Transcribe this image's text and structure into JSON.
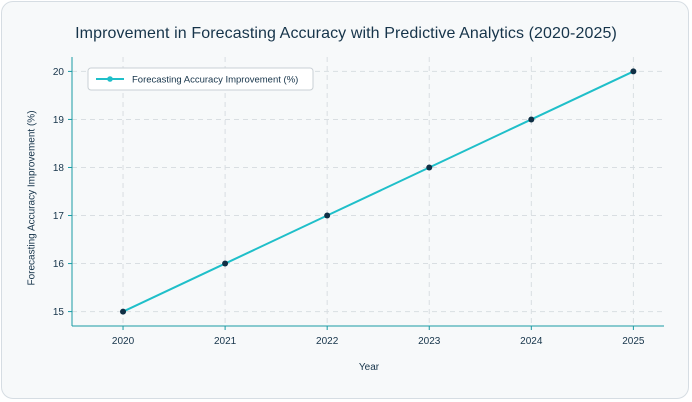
{
  "chart_data": {
    "type": "line",
    "title": "Improvement in Forecasting Accuracy with Predictive Analytics (2020-2025)",
    "xlabel": "Year",
    "ylabel": "Forecasting Accuracy Improvement (%)",
    "x": [
      2020,
      2021,
      2022,
      2023,
      2024,
      2025
    ],
    "xlim": [
      2019.5,
      2025.3
    ],
    "ylim": [
      14.7,
      20.3
    ],
    "yticks": [
      15,
      16,
      17,
      18,
      19,
      20
    ],
    "grid": true,
    "legend_position": "top-left",
    "series": [
      {
        "name": "Forecasting Accuracy Improvement (%)",
        "values": [
          15,
          16,
          17,
          18,
          19,
          20
        ],
        "color": "#1fbfc9",
        "marker_color": "#0f2f45"
      }
    ]
  }
}
